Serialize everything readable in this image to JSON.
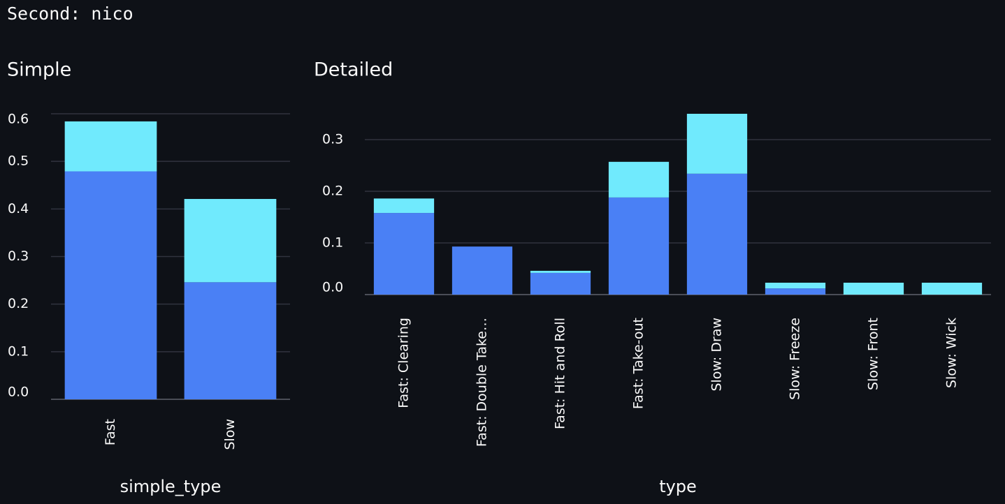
{
  "header": "Second: nico",
  "chart_data": [
    {
      "type": "bar",
      "stacked": true,
      "title": "Simple",
      "x_label": "simple_type",
      "categories": [
        "Fast",
        "Slow"
      ],
      "series": [
        {
          "color": "#4a80f5",
          "values": [
            0.479,
            0.246
          ]
        },
        {
          "color": "#70eafd",
          "values": [
            0.105,
            0.175
          ]
        }
      ],
      "ylim": [
        0,
        0.6
      ],
      "yticks": [
        {
          "value": 0,
          "label": "0.0"
        },
        0.1,
        0.2,
        0.3,
        0.4,
        0.5,
        0.6
      ],
      "grid": true
    },
    {
      "type": "bar",
      "stacked": true,
      "title": "Detailed",
      "x_label": "type",
      "categories": [
        "Fast: Clearing",
        "Fast: Double Take…",
        "Fast: Hit and Roll",
        "Fast: Take-out",
        "Slow: Draw",
        "Slow: Freeze",
        "Slow: Front",
        "Slow: Wick"
      ],
      "series": [
        {
          "color": "#4a80f5",
          "values": [
            0.158,
            0.093,
            0.042,
            0.188,
            0.234,
            0.012,
            0,
            0
          ]
        },
        {
          "color": "#70eafd",
          "values": [
            0.028,
            0,
            0.004,
            0.069,
            0.116,
            0.011,
            0.023,
            0.023
          ]
        }
      ],
      "ylim": [
        0,
        0.35
      ],
      "yticks": [
        {
          "value": 0,
          "label": "0.0"
        },
        0.1,
        0.2,
        0.3
      ],
      "grid": true
    }
  ]
}
